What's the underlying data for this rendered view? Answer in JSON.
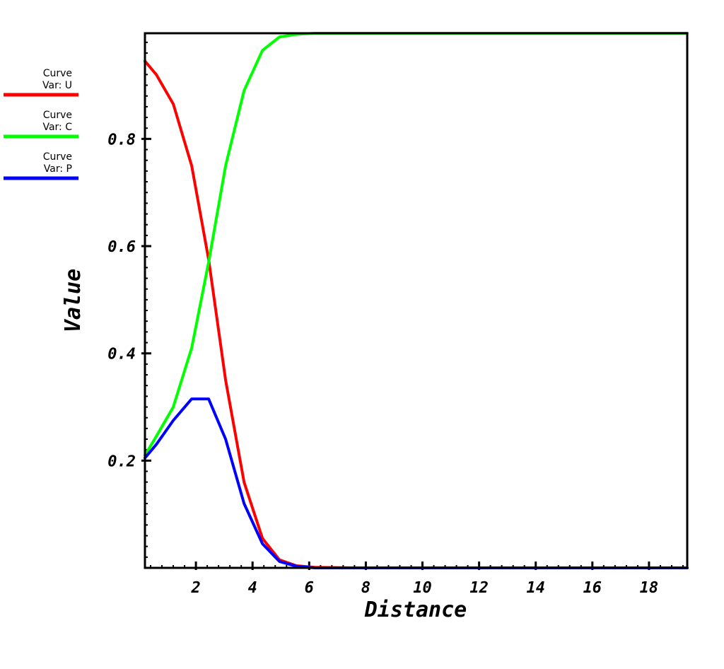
{
  "chart_data": {
    "type": "line",
    "xlabel": "Distance",
    "ylabel": "Value",
    "xlim": [
      0.2,
      19.35
    ],
    "ylim": [
      0.0,
      0.997
    ],
    "x_ticks": [
      2,
      4,
      6,
      8,
      10,
      12,
      14,
      16,
      18
    ],
    "x_tick_labels": [
      "2",
      "4",
      "6",
      "8",
      "10",
      "12",
      "14",
      "16",
      "18"
    ],
    "y_ticks": [
      0.2,
      0.4,
      0.6,
      0.8
    ],
    "y_tick_labels": [
      "0.2",
      "0.4",
      "0.6",
      "0.8"
    ],
    "grid": false,
    "legend_position": "top-left outside",
    "series": [
      {
        "name": "Curve\nVar: U",
        "color": "#ff0000",
        "x": [
          0.2,
          0.6,
          1.2,
          1.85,
          2.45,
          3.05,
          3.7,
          4.35,
          4.95,
          5.55,
          6.2,
          7.5,
          10,
          14,
          19.35
        ],
        "y": [
          0.945,
          0.92,
          0.865,
          0.75,
          0.575,
          0.35,
          0.16,
          0.055,
          0.015,
          0.004,
          0.001,
          0.0,
          0.0,
          0.0,
          0.0
        ]
      },
      {
        "name": "Curve\nVar: C",
        "color": "#00ff00",
        "x": [
          0.2,
          0.6,
          1.2,
          1.85,
          2.45,
          3.05,
          3.7,
          4.35,
          4.95,
          5.55,
          6.2,
          7.5,
          10,
          14,
          19.35
        ],
        "y": [
          0.21,
          0.245,
          0.3,
          0.41,
          0.57,
          0.75,
          0.89,
          0.965,
          0.99,
          0.995,
          0.997,
          0.997,
          0.997,
          0.997,
          0.997
        ]
      },
      {
        "name": "Curve\nVar: P",
        "color": "#0000ff",
        "x": [
          0.2,
          0.6,
          1.2,
          1.85,
          2.45,
          3.05,
          3.7,
          4.35,
          4.95,
          5.55,
          6.2,
          7.5,
          10,
          14,
          19.35
        ],
        "y": [
          0.205,
          0.23,
          0.275,
          0.315,
          0.315,
          0.24,
          0.12,
          0.045,
          0.012,
          0.003,
          0.0,
          0.0,
          0.0,
          0.0,
          0.0
        ]
      }
    ]
  }
}
